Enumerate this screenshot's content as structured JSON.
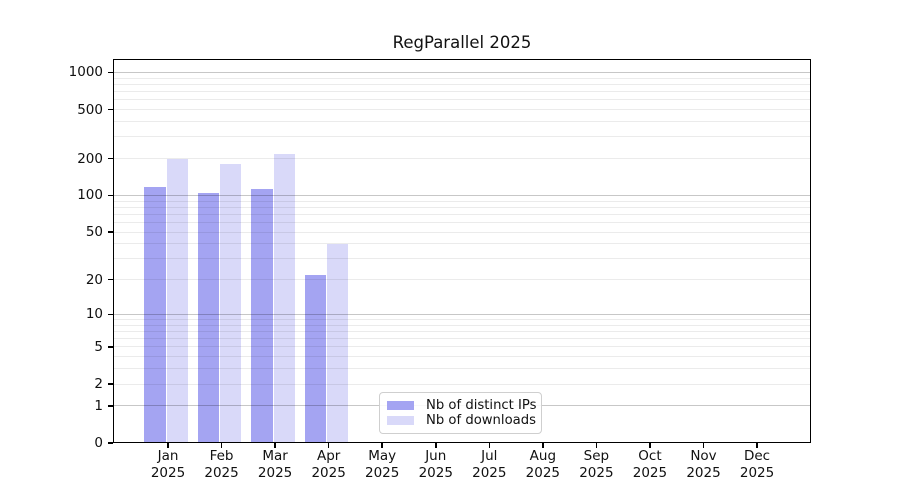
{
  "chart_data": {
    "type": "bar",
    "title": "RegParallel 2025",
    "categories": [
      "Jan 2025",
      "Feb 2025",
      "Mar 2025",
      "Apr 2025",
      "May 2025",
      "Jun 2025",
      "Jul 2025",
      "Aug 2025",
      "Sep 2025",
      "Oct 2025",
      "Nov 2025",
      "Dec 2025"
    ],
    "x": {
      "months": [
        "Jan",
        "Feb",
        "Mar",
        "Apr",
        "May",
        "Jun",
        "Jul",
        "Aug",
        "Sep",
        "Oct",
        "Nov",
        "Dec"
      ],
      "year": "2025"
    },
    "series": [
      {
        "name": "Nb of distinct IPs",
        "color": "#a4a4f2",
        "values": [
          118,
          105,
          114,
          22,
          0,
          0,
          0,
          0,
          0,
          0,
          0,
          0
        ]
      },
      {
        "name": "Nb of downloads",
        "color": "#d9d9f9",
        "values": [
          197,
          182,
          216,
          40,
          0,
          0,
          0,
          0,
          0,
          0,
          0,
          0
        ]
      }
    ],
    "y_axis": {
      "scale": "log1p",
      "tick_values": [
        0,
        1,
        2,
        5,
        10,
        20,
        50,
        100,
        200,
        500,
        1000
      ],
      "tick_labels": [
        "0",
        "1",
        "2",
        "5",
        "10",
        "20",
        "50",
        "100",
        "200",
        "500",
        "1000"
      ],
      "major_tick_values": [
        1,
        10,
        100,
        1000
      ],
      "ylim": [
        0,
        1294
      ]
    },
    "grid": {
      "horizontal": true,
      "which": "major+minor",
      "drawn_over_bars": true
    },
    "legend": {
      "position": "inside-bottom-center",
      "items": [
        "Nb of distinct IPs",
        "Nb of downloads"
      ]
    }
  }
}
